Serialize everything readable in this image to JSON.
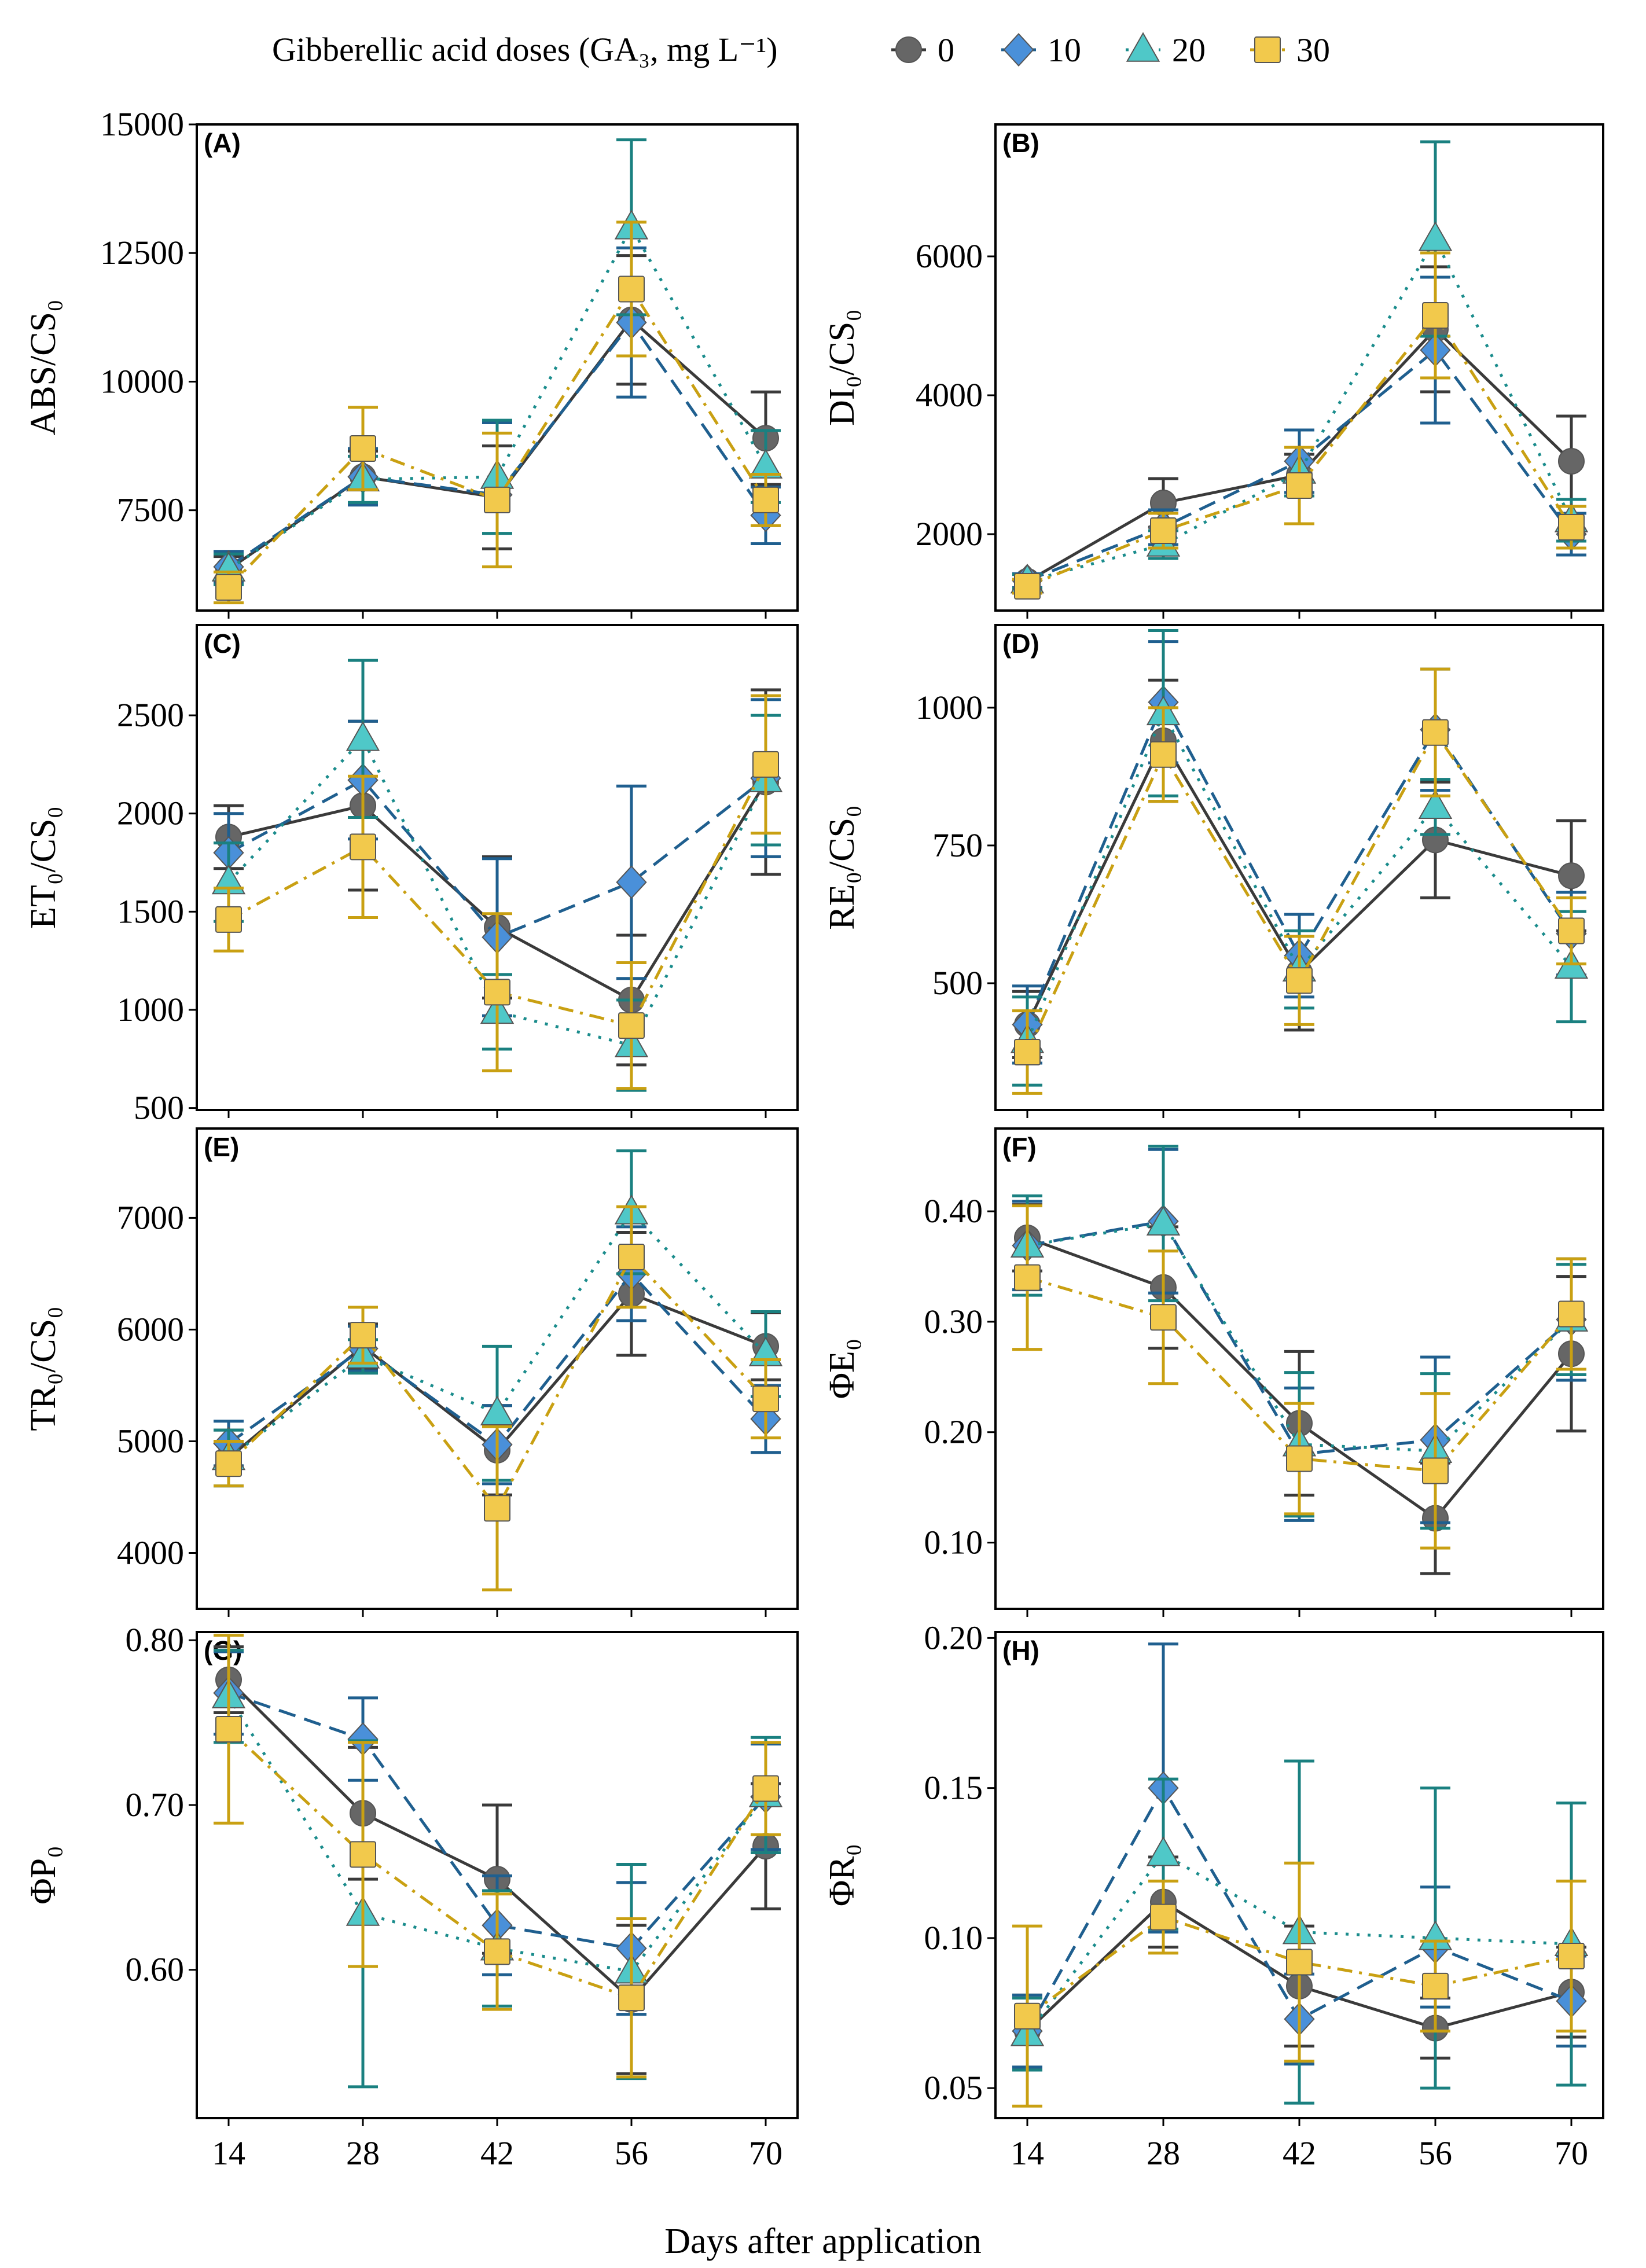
{
  "legend": {
    "title": "Gibberellic acid doses (GA₃, mg L⁻¹)",
    "entries": [
      "0",
      "10",
      "20",
      "30"
    ]
  },
  "xlabel": "Days after application",
  "colors": {
    "0": "#666666",
    "10": "#4a90d9",
    "20": "#4fc8c8",
    "30": "#f2c94c"
  },
  "chart_data": [
    {
      "tag": "(A)",
      "type": "line",
      "ylabel": "ABS/CS₀",
      "x": [
        14,
        28,
        42,
        56,
        70
      ],
      "xticks": [
        "14",
        "28",
        "42",
        "56",
        "70"
      ],
      "ylim": [
        5550,
        15000
      ],
      "yticks": [
        7500,
        10000,
        12500,
        15000
      ],
      "series": [
        {
          "name": "0",
          "values": [
            6350,
            8150,
            7750,
            11200,
            8900
          ],
          "err": [
            250,
            500,
            1000,
            1250,
            900
          ]
        },
        {
          "name": "10",
          "values": [
            6400,
            8150,
            7800,
            11150,
            7400
          ],
          "err": [
            300,
            550,
            1400,
            1450,
            550
          ]
        },
        {
          "name": "20",
          "values": [
            6350,
            8100,
            8150,
            13000,
            8350
          ],
          "err": [
            300,
            450,
            1100,
            1700,
            700
          ]
        },
        {
          "name": "30",
          "values": [
            6000,
            8700,
            7700,
            11800,
            7700
          ],
          "err": [
            300,
            800,
            1300,
            1300,
            500
          ]
        }
      ]
    },
    {
      "tag": "(B)",
      "type": "line",
      "ylabel": "DI₀/CS₀",
      "x": [
        14,
        28,
        42,
        56,
        70
      ],
      "xticks": [
        "14",
        "28",
        "42",
        "56",
        "70"
      ],
      "ylim": [
        900,
        7900
      ],
      "yticks": [
        2000,
        4000,
        6000
      ],
      "series": [
        {
          "name": "0",
          "values": [
            1320,
            2450,
            2850,
            4950,
            3050
          ],
          "err": [
            100,
            350,
            300,
            900,
            650
          ]
        },
        {
          "name": "10",
          "values": [
            1330,
            2100,
            3050,
            4650,
            2000
          ],
          "err": [
            100,
            250,
            450,
            1050,
            300
          ]
        },
        {
          "name": "20",
          "values": [
            1320,
            1850,
            2900,
            6250,
            2200
          ],
          "err": [
            100,
            200,
            350,
            1400,
            300
          ]
        },
        {
          "name": "30",
          "values": [
            1250,
            2050,
            2700,
            5150,
            2100
          ],
          "err": [
            100,
            250,
            550,
            900,
            300
          ]
        }
      ]
    },
    {
      "tag": "(C)",
      "type": "line",
      "ylabel": "ET₀/CS₀",
      "x": [
        14,
        28,
        42,
        56,
        70
      ],
      "xticks": [
        "14",
        "28",
        "42",
        "56",
        "70"
      ],
      "ylim": [
        490,
        2960
      ],
      "yticks": [
        500,
        1000,
        1500,
        2000,
        2500
      ],
      "series": [
        {
          "name": "0",
          "values": [
            1880,
            2040,
            1420,
            1050,
            2160
          ],
          "err": [
            160,
            430,
            360,
            330,
            470
          ]
        },
        {
          "name": "10",
          "values": [
            1800,
            2170,
            1370,
            1650,
            2180
          ],
          "err": [
            200,
            300,
            400,
            490,
            400
          ]
        },
        {
          "name": "20",
          "values": [
            1650,
            2380,
            990,
            820,
            2170
          ],
          "err": [
            200,
            400,
            190,
            230,
            330
          ]
        },
        {
          "name": "30",
          "values": [
            1460,
            1830,
            1090,
            920,
            2250
          ],
          "err": [
            160,
            360,
            400,
            320,
            350
          ]
        }
      ]
    },
    {
      "tag": "(D)",
      "type": "line",
      "ylabel": "RE₀/CS₀",
      "x": [
        14,
        28,
        42,
        56,
        70
      ],
      "xticks": [
        "14",
        "28",
        "42",
        "56",
        "70"
      ],
      "ylim": [
        270,
        1150
      ],
      "yticks": [
        500,
        750,
        1000
      ],
      "series": [
        {
          "name": "0",
          "values": [
            425,
            940,
            520,
            760,
            695
          ],
          "err": [
            60,
            110,
            105,
            105,
            100
          ]
        },
        {
          "name": "10",
          "values": [
            425,
            1010,
            550,
            960,
            590
          ],
          "err": [
            70,
            110,
            75,
            110,
            75
          ]
        },
        {
          "name": "20",
          "values": [
            395,
            990,
            525,
            820,
            530
          ],
          "err": [
            80,
            150,
            70,
            50,
            100
          ]
        },
        {
          "name": "30",
          "values": [
            375,
            915,
            505,
            955,
            595
          ],
          "err": [
            75,
            85,
            80,
            115,
            60
          ]
        }
      ]
    },
    {
      "tag": "(E)",
      "type": "line",
      "ylabel": "TR₀/CS₀",
      "x": [
        14,
        28,
        42,
        56,
        70
      ],
      "xticks": [
        "14",
        "28",
        "42",
        "56",
        "70"
      ],
      "ylim": [
        3500,
        7800
      ],
      "yticks": [
        4000,
        5000,
        6000,
        7000
      ],
      "series": [
        {
          "name": "0",
          "values": [
            4850,
            5850,
            4920,
            6320,
            5850
          ],
          "err": [
            250,
            200,
            400,
            550,
            300
          ]
        },
        {
          "name": "10",
          "values": [
            4980,
            5830,
            4970,
            6500,
            5200
          ],
          "err": [
            200,
            200,
            350,
            420,
            300
          ]
        },
        {
          "name": "20",
          "values": [
            4850,
            5760,
            5250,
            7050,
            5780
          ],
          "err": [
            250,
            150,
            600,
            550,
            380
          ]
        },
        {
          "name": "30",
          "values": [
            4800,
            5950,
            4400,
            6650,
            5380
          ],
          "err": [
            200,
            250,
            730,
            450,
            350
          ]
        }
      ]
    },
    {
      "tag": "(F)",
      "type": "line",
      "ylabel": "ΦE₀",
      "x": [
        14,
        28,
        42,
        56,
        70
      ],
      "xticks": [
        "14",
        "28",
        "42",
        "56",
        "70"
      ],
      "ylim": [
        0.04,
        0.475
      ],
      "yticks": [
        0.1,
        0.2,
        0.3,
        0.4
      ],
      "series": [
        {
          "name": "0",
          "values": [
            0.376,
            0.331,
            0.208,
            0.122,
            0.271
          ],
          "err": [
            0.03,
            0.055,
            0.065,
            0.05,
            0.07
          ]
        },
        {
          "name": "10",
          "values": [
            0.369,
            0.391,
            0.18,
            0.193,
            0.302
          ],
          "err": [
            0.04,
            0.065,
            0.06,
            0.075,
            0.055
          ]
        },
        {
          "name": "20",
          "values": [
            0.369,
            0.389,
            0.189,
            0.183,
            0.302
          ],
          "err": [
            0.045,
            0.07,
            0.065,
            0.07,
            0.05
          ]
        },
        {
          "name": "30",
          "values": [
            0.34,
            0.304,
            0.176,
            0.165,
            0.307
          ],
          "err": [
            0.065,
            0.06,
            0.05,
            0.07,
            0.05
          ]
        }
      ]
    },
    {
      "tag": "(G)",
      "type": "line",
      "ylabel": "ΦP₀",
      "x": [
        14,
        28,
        42,
        56,
        70
      ],
      "xticks": [
        "14",
        "28",
        "42",
        "56",
        "70"
      ],
      "ylim": [
        0.51,
        0.805
      ],
      "yticks": [
        0.6,
        0.7,
        0.8
      ],
      "series": [
        {
          "name": "0",
          "values": [
            0.776,
            0.695,
            0.655,
            0.582,
            0.675
          ],
          "err": [
            0.02,
            0.04,
            0.045,
            0.045,
            0.038
          ]
        },
        {
          "name": "10",
          "values": [
            0.768,
            0.74,
            0.627,
            0.613,
            0.705
          ],
          "err": [
            0.025,
            0.025,
            0.03,
            0.04,
            0.032
          ]
        },
        {
          "name": "20",
          "values": [
            0.766,
            0.634,
            0.613,
            0.599,
            0.706
          ],
          "err": [
            0.028,
            0.105,
            0.035,
            0.065,
            0.035
          ]
        },
        {
          "name": "30",
          "values": [
            0.746,
            0.67,
            0.611,
            0.583,
            0.71
          ],
          "err": [
            0.057,
            0.068,
            0.035,
            0.048,
            0.028
          ]
        }
      ]
    },
    {
      "tag": "(H)",
      "type": "line",
      "ylabel": "ΦR₀",
      "x": [
        14,
        28,
        42,
        56,
        70
      ],
      "xticks": [
        "14",
        "28",
        "42",
        "56",
        "70"
      ],
      "ylim": [
        0.04,
        0.202
      ],
      "yticks": [
        0.05,
        0.1,
        0.15,
        0.2
      ],
      "series": [
        {
          "name": "0",
          "values": [
            0.069,
            0.112,
            0.084,
            0.07,
            0.082
          ],
          "err": [
            0.012,
            0.015,
            0.02,
            0.01,
            0.015
          ]
        },
        {
          "name": "10",
          "values": [
            0.069,
            0.15,
            0.073,
            0.097,
            0.079
          ],
          "err": [
            0.012,
            0.048,
            0.015,
            0.02,
            0.015
          ]
        },
        {
          "name": "20",
          "values": [
            0.068,
            0.128,
            0.102,
            0.1,
            0.098
          ],
          "err": [
            0.012,
            0.025,
            0.057,
            0.05,
            0.047
          ]
        },
        {
          "name": "30",
          "values": [
            0.074,
            0.107,
            0.092,
            0.084,
            0.094
          ],
          "err": [
            0.03,
            0.012,
            0.033,
            0.015,
            0.025
          ]
        }
      ]
    }
  ]
}
